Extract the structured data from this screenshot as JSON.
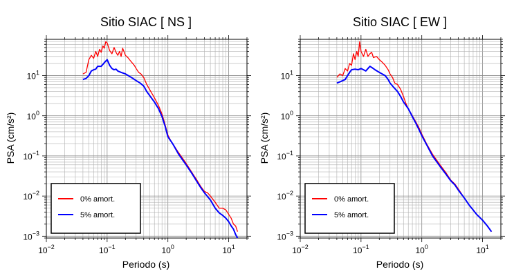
{
  "chart_data": [
    {
      "type": "line",
      "title": "Sitio SIAC [ NS ]",
      "xlabel": "Periodo (s)",
      "ylabel": "PSA (cm/s²)",
      "xscale": "log",
      "yscale": "log",
      "xlim": [
        0.01,
        20
      ],
      "ylim": [
        0.0009,
        80
      ],
      "x_ticks": [
        {
          "value": 0.01,
          "base": "10",
          "exp": "−2"
        },
        {
          "value": 0.1,
          "base": "10",
          "exp": "−1"
        },
        {
          "value": 1,
          "base": "10",
          "exp": "0"
        },
        {
          "value": 10,
          "base": "10",
          "exp": "1"
        }
      ],
      "y_ticks": [
        {
          "value": 0.001,
          "base": "10",
          "exp": "−3"
        },
        {
          "value": 0.01,
          "base": "10",
          "exp": "−2"
        },
        {
          "value": 0.1,
          "base": "10",
          "exp": "−1"
        },
        {
          "value": 1,
          "base": "10",
          "exp": "0"
        },
        {
          "value": 10,
          "base": "10",
          "exp": "1"
        }
      ],
      "grid": true,
      "legend_position": "bottom-left",
      "series": [
        {
          "name": "0% amort.",
          "color": "#ff0000",
          "points": [
            [
              0.04,
              11
            ],
            [
              0.045,
              12
            ],
            [
              0.05,
              25
            ],
            [
              0.055,
              32
            ],
            [
              0.06,
              27
            ],
            [
              0.065,
              40
            ],
            [
              0.07,
              30
            ],
            [
              0.075,
              45
            ],
            [
              0.08,
              38
            ],
            [
              0.085,
              55
            ],
            [
              0.09,
              48
            ],
            [
              0.095,
              70
            ],
            [
              0.1,
              65
            ],
            [
              0.11,
              42
            ],
            [
              0.12,
              35
            ],
            [
              0.13,
              50
            ],
            [
              0.14,
              38
            ],
            [
              0.15,
              32
            ],
            [
              0.16,
              40
            ],
            [
              0.17,
              30
            ],
            [
              0.18,
              48
            ],
            [
              0.2,
              32
            ],
            [
              0.22,
              28
            ],
            [
              0.25,
              22
            ],
            [
              0.28,
              18
            ],
            [
              0.3,
              15
            ],
            [
              0.33,
              12
            ],
            [
              0.36,
              11
            ],
            [
              0.4,
              9
            ],
            [
              0.45,
              6
            ],
            [
              0.5,
              4.5
            ],
            [
              0.6,
              2.8
            ],
            [
              0.7,
              1.8
            ],
            [
              0.8,
              1.1
            ],
            [
              0.9,
              0.6
            ],
            [
              1,
              0.33
            ],
            [
              1.1,
              0.25
            ],
            [
              1.2,
              0.2
            ],
            [
              1.5,
              0.12
            ],
            [
              2,
              0.065
            ],
            [
              2.5,
              0.038
            ],
            [
              3,
              0.025
            ],
            [
              3.5,
              0.017
            ],
            [
              4,
              0.013
            ],
            [
              4.5,
              0.012
            ],
            [
              5,
              0.01
            ],
            [
              6,
              0.007
            ],
            [
              7,
              0.005
            ],
            [
              8,
              0.005
            ],
            [
              9,
              0.0045
            ],
            [
              10,
              0.0035
            ],
            [
              11,
              0.0028
            ],
            [
              12,
              0.002
            ],
            [
              13,
              0.0018
            ],
            [
              14,
              0.0013
            ]
          ]
        },
        {
          "name": "5% amort.",
          "color": "#0000ff",
          "points": [
            [
              0.04,
              8
            ],
            [
              0.045,
              8.5
            ],
            [
              0.05,
              10
            ],
            [
              0.055,
              13
            ],
            [
              0.06,
              14
            ],
            [
              0.065,
              14.5
            ],
            [
              0.07,
              17
            ],
            [
              0.08,
              17
            ],
            [
              0.09,
              21
            ],
            [
              0.1,
              25
            ],
            [
              0.11,
              18
            ],
            [
              0.12,
              15
            ],
            [
              0.13,
              14
            ],
            [
              0.14,
              14.5
            ],
            [
              0.15,
              13
            ],
            [
              0.17,
              12
            ],
            [
              0.2,
              11
            ],
            [
              0.25,
              9
            ],
            [
              0.3,
              7.5
            ],
            [
              0.35,
              6.5
            ],
            [
              0.4,
              5.5
            ],
            [
              0.45,
              4
            ],
            [
              0.5,
              3.2
            ],
            [
              0.6,
              2.2
            ],
            [
              0.7,
              1.5
            ],
            [
              0.8,
              0.95
            ],
            [
              0.9,
              0.55
            ],
            [
              1,
              0.3
            ],
            [
              1.2,
              0.2
            ],
            [
              1.5,
              0.11
            ],
            [
              2,
              0.06
            ],
            [
              2.5,
              0.036
            ],
            [
              3,
              0.023
            ],
            [
              3.5,
              0.016
            ],
            [
              4,
              0.012
            ],
            [
              5,
              0.008
            ],
            [
              6,
              0.005
            ],
            [
              7,
              0.0038
            ],
            [
              8,
              0.0033
            ],
            [
              9,
              0.0028
            ],
            [
              10,
              0.0023
            ],
            [
              11,
              0.0018
            ],
            [
              12,
              0.0015
            ],
            [
              13,
              0.0011
            ],
            [
              14,
              0.0009
            ]
          ]
        }
      ]
    },
    {
      "type": "line",
      "title": "Sitio SIAC [ EW ]",
      "xlabel": "Periodo (s)",
      "ylabel": "PSA (cm/s²)",
      "xscale": "log",
      "yscale": "log",
      "xlim": [
        0.01,
        20
      ],
      "ylim": [
        0.0009,
        80
      ],
      "x_ticks": [
        {
          "value": 0.01,
          "base": "10",
          "exp": "−2"
        },
        {
          "value": 0.1,
          "base": "10",
          "exp": "−1"
        },
        {
          "value": 1,
          "base": "10",
          "exp": "0"
        },
        {
          "value": 10,
          "base": "10",
          "exp": "1"
        }
      ],
      "y_ticks": [
        {
          "value": 0.001,
          "base": "10",
          "exp": "−3"
        },
        {
          "value": 0.01,
          "base": "10",
          "exp": "−2"
        },
        {
          "value": 0.1,
          "base": "10",
          "exp": "−1"
        },
        {
          "value": 1,
          "base": "10",
          "exp": "0"
        },
        {
          "value": 10,
          "base": "10",
          "exp": "1"
        }
      ],
      "grid": true,
      "legend_position": "bottom-left",
      "series": [
        {
          "name": "0% amort.",
          "color": "#ff0000",
          "points": [
            [
              0.04,
              9
            ],
            [
              0.045,
              11
            ],
            [
              0.05,
              10
            ],
            [
              0.055,
              15
            ],
            [
              0.06,
              13
            ],
            [
              0.065,
              20
            ],
            [
              0.07,
              18
            ],
            [
              0.075,
              35
            ],
            [
              0.08,
              25
            ],
            [
              0.085,
              40
            ],
            [
              0.09,
              30
            ],
            [
              0.095,
              70
            ],
            [
              0.1,
              40
            ],
            [
              0.11,
              30
            ],
            [
              0.12,
              45
            ],
            [
              0.13,
              30
            ],
            [
              0.14,
              35
            ],
            [
              0.15,
              38
            ],
            [
              0.16,
              28
            ],
            [
              0.18,
              30
            ],
            [
              0.2,
              25
            ],
            [
              0.22,
              22
            ],
            [
              0.25,
              18
            ],
            [
              0.28,
              14
            ],
            [
              0.3,
              11
            ],
            [
              0.33,
              9
            ],
            [
              0.36,
              6.5
            ],
            [
              0.4,
              6
            ],
            [
              0.45,
              4.5
            ],
            [
              0.5,
              3
            ],
            [
              0.55,
              2
            ],
            [
              0.6,
              1.5
            ],
            [
              0.7,
              1
            ],
            [
              0.8,
              0.7
            ],
            [
              0.9,
              0.5
            ],
            [
              1,
              0.35
            ],
            [
              1.2,
              0.2
            ],
            [
              1.5,
              0.11
            ],
            [
              2,
              0.06
            ],
            [
              2.5,
              0.038
            ],
            [
              3,
              0.025
            ],
            [
              3.5,
              0.02
            ],
            [
              4,
              0.015
            ],
            [
              5,
              0.009
            ],
            [
              6,
              0.006
            ],
            [
              7,
              0.0045
            ],
            [
              8,
              0.0035
            ],
            [
              10,
              0.0025
            ],
            [
              12,
              0.0018
            ],
            [
              14,
              0.0013
            ]
          ]
        },
        {
          "name": "5% amort.",
          "color": "#0000ff",
          "points": [
            [
              0.04,
              6.5
            ],
            [
              0.045,
              7
            ],
            [
              0.05,
              7.5
            ],
            [
              0.055,
              8
            ],
            [
              0.06,
              10
            ],
            [
              0.065,
              12
            ],
            [
              0.07,
              14
            ],
            [
              0.08,
              14.5
            ],
            [
              0.09,
              14
            ],
            [
              0.1,
              15
            ],
            [
              0.11,
              14
            ],
            [
              0.12,
              13
            ],
            [
              0.13,
              15
            ],
            [
              0.14,
              17
            ],
            [
              0.15,
              16
            ],
            [
              0.17,
              14
            ],
            [
              0.2,
              12
            ],
            [
              0.25,
              10
            ],
            [
              0.28,
              8
            ],
            [
              0.3,
              6.5
            ],
            [
              0.35,
              5
            ],
            [
              0.4,
              4
            ],
            [
              0.45,
              3
            ],
            [
              0.5,
              2.2
            ],
            [
              0.6,
              1.5
            ],
            [
              0.7,
              0.95
            ],
            [
              0.8,
              0.65
            ],
            [
              0.9,
              0.45
            ],
            [
              1,
              0.32
            ],
            [
              1.2,
              0.19
            ],
            [
              1.5,
              0.1
            ],
            [
              2,
              0.055
            ],
            [
              2.5,
              0.035
            ],
            [
              3,
              0.024
            ],
            [
              3.5,
              0.019
            ],
            [
              4,
              0.014
            ],
            [
              5,
              0.009
            ],
            [
              6,
              0.006
            ],
            [
              7,
              0.0045
            ],
            [
              8,
              0.0035
            ],
            [
              10,
              0.0025
            ],
            [
              12,
              0.0018
            ],
            [
              14,
              0.0013
            ]
          ]
        }
      ]
    }
  ]
}
